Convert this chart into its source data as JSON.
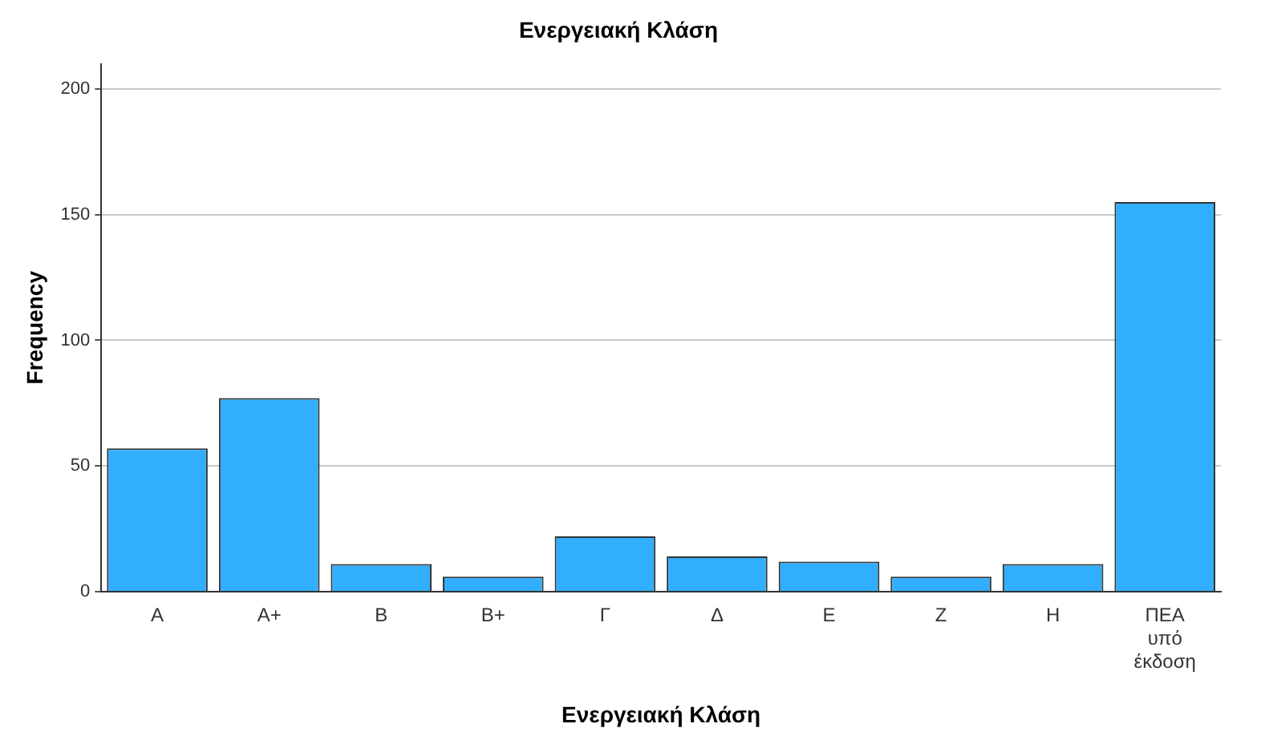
{
  "chart_data": {
    "type": "bar",
    "title": "Ενεργειακή Κλάση",
    "xlabel": "Ενεργειακή Κλάση",
    "ylabel": "Frequency",
    "categories": [
      "Α",
      "Α+",
      "Β",
      "Β+",
      "Γ",
      "Δ",
      "Ε",
      "Ζ",
      "Η",
      "ΠΕΑ υπό έκδοση"
    ],
    "values": [
      57,
      77,
      11,
      6,
      22,
      14,
      12,
      6,
      11,
      155
    ],
    "color": "#31aefe",
    "ylim": [
      0,
      210
    ],
    "yticks": [
      0,
      50,
      100,
      150,
      200
    ],
    "grid": "y",
    "legend": false
  }
}
